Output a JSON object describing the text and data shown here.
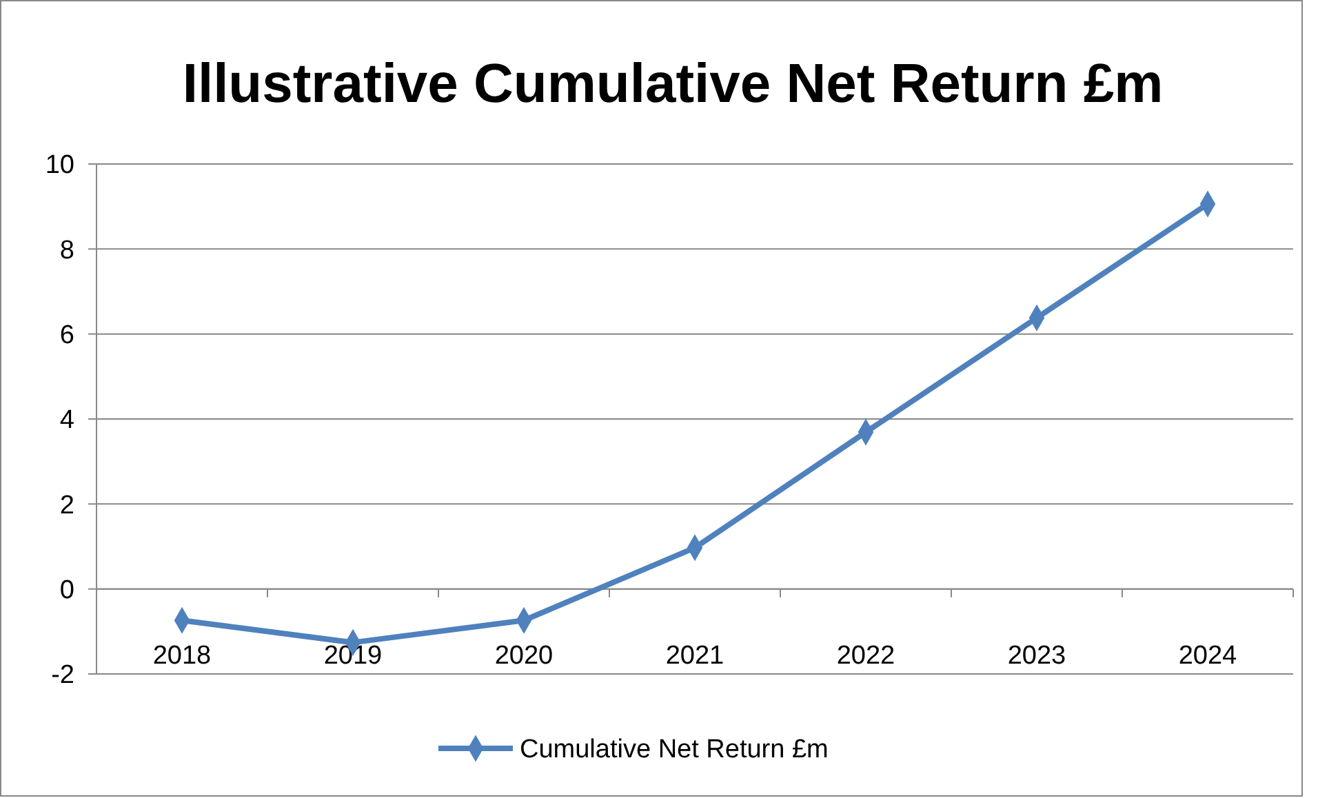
{
  "chart_data": {
    "type": "line",
    "title": "Illustrative Cumulative Net Return £m",
    "categories": [
      "2018",
      "2019",
      "2020",
      "2021",
      "2022",
      "2023",
      "2024"
    ],
    "series": [
      {
        "name": "Cumulative Net Return £m",
        "color": "#4f81bd",
        "values": [
          -0.74,
          -1.26,
          -0.74,
          0.97,
          3.69,
          6.38,
          9.06
        ]
      }
    ],
    "ylim": [
      -2,
      10
    ],
    "yticks": [
      -2,
      0,
      2,
      4,
      6,
      8,
      10
    ],
    "grid": "y",
    "legend": "bottom",
    "marker": "diamond",
    "line_style": "solid"
  }
}
